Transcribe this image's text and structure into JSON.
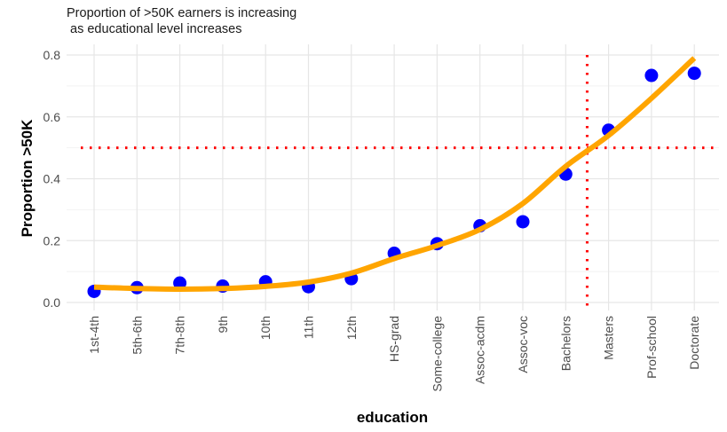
{
  "chart_data": {
    "type": "scatter",
    "title": "Proportion of >50K earners is increasing",
    "subtitle": " as educational level increases",
    "xlabel": "education",
    "ylabel": "Proportion >50K",
    "categories": [
      "1st-4th",
      "5th-6th",
      "7th-8th",
      "9th",
      "10th",
      "11th",
      "12th",
      "HS-grad",
      "Some-college",
      "Assoc-acdm",
      "Assoc-voc",
      "Bachelors",
      "Masters",
      "Prof-school",
      "Doctorate"
    ],
    "ylim": [
      0,
      0.8
    ],
    "yticks": [
      0.0,
      0.2,
      0.4,
      0.6,
      0.8
    ],
    "ytick_labels": [
      "0.0",
      "0.2",
      "0.4",
      "0.6",
      "0.8"
    ],
    "grid": true,
    "series": [
      {
        "kind": "points",
        "color": "#0000ff",
        "values": [
          0.036,
          0.048,
          0.063,
          0.053,
          0.067,
          0.051,
          0.077,
          0.159,
          0.19,
          0.248,
          0.261,
          0.415,
          0.557,
          0.734,
          0.741
        ]
      },
      {
        "kind": "smooth",
        "color": "#ffa500",
        "values": [
          0.05,
          0.045,
          0.043,
          0.045,
          0.052,
          0.066,
          0.095,
          0.142,
          0.184,
          0.236,
          0.32,
          0.44,
          0.54,
          0.66,
          0.79
        ]
      }
    ],
    "reference_lines": [
      {
        "axis": "y",
        "value": 0.5,
        "color": "#ff0000",
        "style": "dotted"
      },
      {
        "axis": "x",
        "value": "Bachelors",
        "offset": 0.5,
        "color": "#ff0000",
        "style": "dotted"
      }
    ]
  }
}
